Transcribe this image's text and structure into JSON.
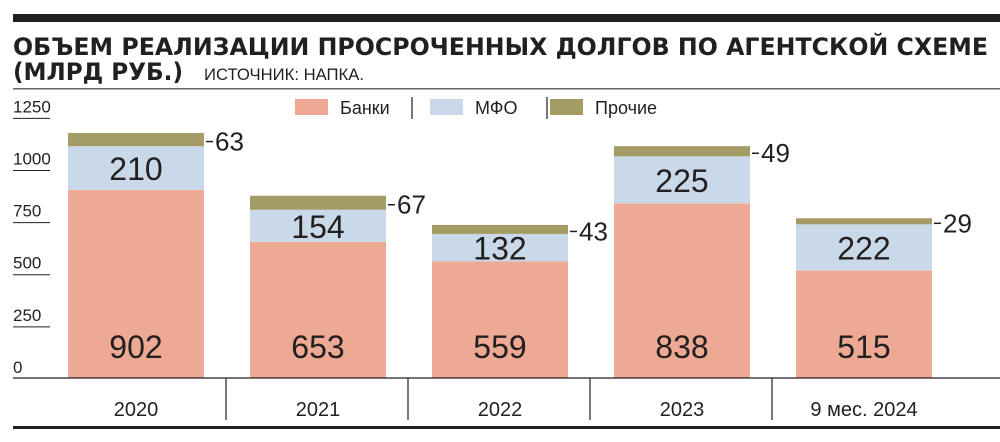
{
  "chart_data": {
    "type": "bar",
    "stacked": true,
    "title": "ОБЪЕМ РЕАЛИЗАЦИИ ПРОСРОЧЕННЫХ ДОЛГОВ ПО АГЕНТСКОЙ СХЕМЕ",
    "unit": "(МЛРД РУБ.)",
    "source": "ИСТОЧНИК: НАПКА.",
    "xlabel": "",
    "ylabel": "",
    "ylim": [
      0,
      1250
    ],
    "yticks": [
      0,
      250,
      500,
      750,
      1000,
      1250
    ],
    "categories": [
      "2020",
      "2021",
      "2022",
      "2023",
      "9 мес. 2024"
    ],
    "series": [
      {
        "name": "Банки",
        "color": "#eea994",
        "values": [
          902,
          653,
          559,
          838,
          515
        ]
      },
      {
        "name": "МФО",
        "color": "#c9d9e9",
        "values": [
          210,
          154,
          132,
          225,
          222
        ]
      },
      {
        "name": "Прочие",
        "color": "#a49b65",
        "values": [
          63,
          67,
          43,
          49,
          29
        ]
      }
    ],
    "legend": "top-center",
    "grid": false
  }
}
